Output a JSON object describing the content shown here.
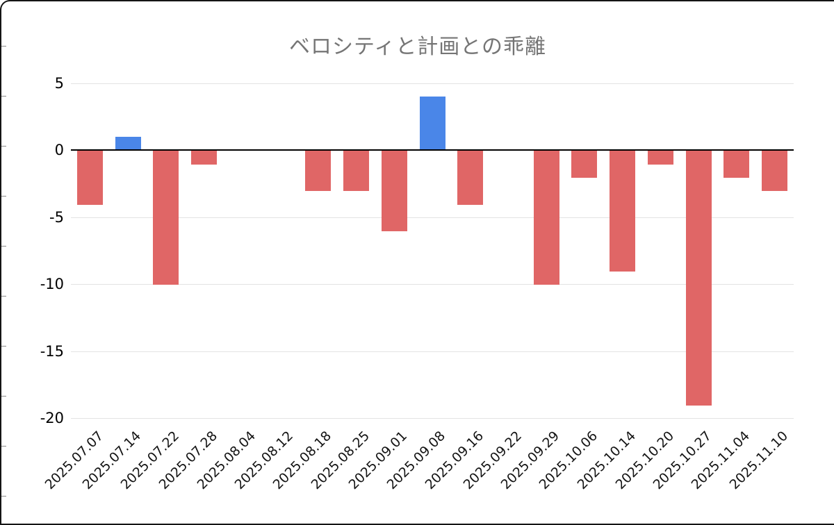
{
  "chart_data": {
    "type": "bar",
    "title": "ベロシティと計画との乖離",
    "categories": [
      "2025.07.07",
      "2025.07.14",
      "2025.07.22",
      "2025.07.28",
      "2025.08.04",
      "2025.08.12",
      "2025.08.18",
      "2025.08.25",
      "2025.09.01",
      "2025.09.08",
      "2025.09.16",
      "2025.09.22",
      "2025.09.29",
      "2025.10.06",
      "2025.10.14",
      "2025.10.20",
      "2025.10.27",
      "2025.11.04",
      "2025.11.10"
    ],
    "values": [
      -4,
      1,
      -10,
      -1,
      0,
      0,
      -3,
      -3,
      -6,
      4,
      -4,
      0,
      -10,
      -2,
      -9,
      -1,
      -19,
      -2,
      -3
    ],
    "xlabel": "",
    "ylabel": "",
    "ylim": [
      -20,
      5
    ],
    "yticks": [
      5,
      0,
      -5,
      -10,
      -15,
      -20
    ],
    "grid": true,
    "legend_position": "none",
    "colors": {
      "positive": "#4a86e8",
      "negative": "#e06666",
      "title": "#757575",
      "gridline": "#e3e3e3",
      "zero_line": "#000000"
    }
  }
}
